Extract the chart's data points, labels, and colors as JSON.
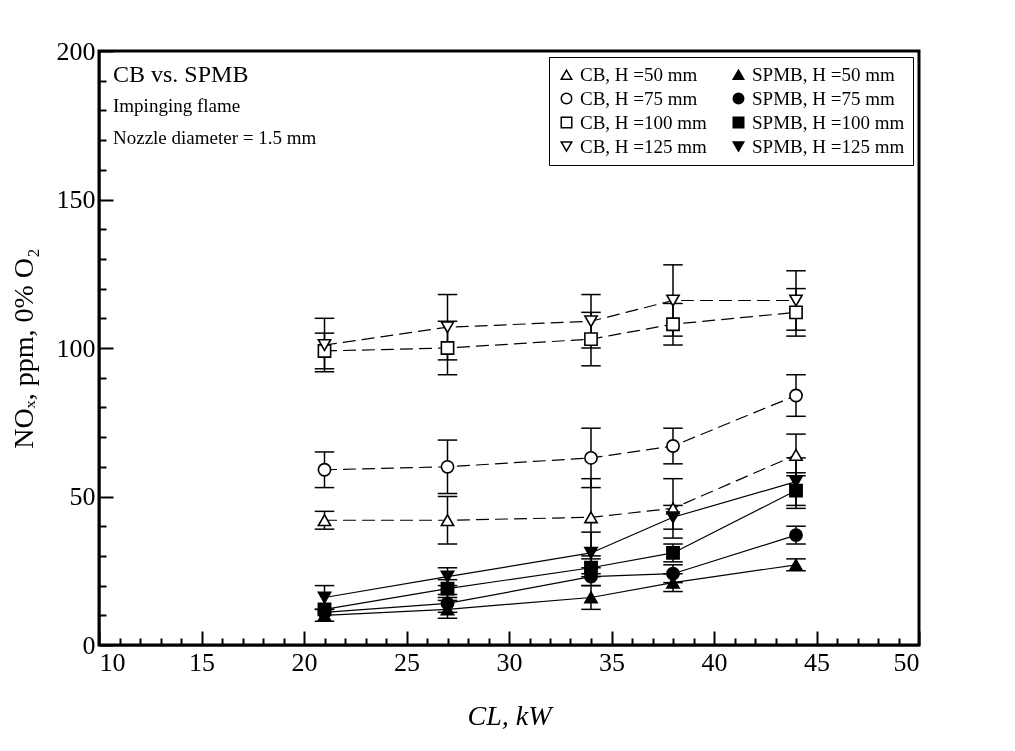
{
  "chart_data": {
    "type": "line",
    "xlabel": "CL, kW",
    "ylabel": "NOₓ, ppm, 0% O₂",
    "annotations": [
      "CB vs. SPMB",
      "Impinging flame",
      "Nozzle diameter = 1.5 mm"
    ],
    "x": [
      21,
      27,
      34,
      38,
      44
    ],
    "series": [
      {
        "name": "CB, H =50 mm",
        "color": "#000000",
        "marker": "triangle",
        "line_style": "dashed",
        "values": [
          42,
          42,
          43,
          46,
          64
        ],
        "errors": [
          3,
          8,
          13,
          10,
          7
        ]
      },
      {
        "name": "CB, H =75 mm",
        "color": "#000000",
        "marker": "circle",
        "line_style": "dashed",
        "values": [
          59,
          60,
          63,
          67,
          84
        ],
        "errors": [
          6,
          9,
          10,
          6,
          7
        ]
      },
      {
        "name": "CB, H =100 mm",
        "color": "#000000",
        "marker": "square",
        "line_style": "dashed",
        "values": [
          99,
          100,
          103,
          108,
          112
        ],
        "errors": [
          6,
          9,
          9,
          7,
          8
        ]
      },
      {
        "name": "CB, H =125 mm",
        "color": "#000000",
        "marker": "triangle-down",
        "line_style": "dashed",
        "values": [
          101,
          107,
          109,
          116,
          116
        ],
        "errors": [
          9,
          11,
          9,
          12,
          10
        ]
      },
      {
        "name": "SPMB, H =50 mm",
        "color": "#000000",
        "marker": "triangle",
        "line_style": "solid",
        "values": [
          10,
          12,
          16,
          21,
          27
        ],
        "errors": [
          2,
          3,
          4,
          3,
          2
        ]
      },
      {
        "name": "SPMB, H =75 mm",
        "color": "#000000",
        "marker": "circle",
        "line_style": "solid",
        "values": [
          11,
          14,
          23,
          24,
          37
        ],
        "errors": [
          null,
          3,
          3,
          3,
          3
        ]
      },
      {
        "name": "SPMB, H =100 mm",
        "color": "#000000",
        "marker": "square",
        "line_style": "solid",
        "values": [
          12,
          19,
          26,
          31,
          52
        ],
        "errors": [
          null,
          3,
          3,
          3,
          6
        ]
      },
      {
        "name": "SPMB, H =125 mm",
        "color": "#000000",
        "marker": "triangle-down",
        "line_style": "solid",
        "values": [
          16,
          23,
          31,
          43,
          55
        ],
        "errors": [
          4,
          3,
          7,
          4,
          8
        ]
      }
    ],
    "xlim": [
      10,
      50
    ],
    "xticks": [
      10,
      {
        "value": 11,
        "label": null
      },
      {
        "value": 12,
        "label": null
      },
      {
        "value": 13,
        "label": null
      },
      {
        "value": 14,
        "label": null
      },
      15,
      {
        "value": 16,
        "label": null
      },
      {
        "value": 17,
        "label": null
      },
      {
        "value": 18,
        "label": null
      },
      {
        "value": 19,
        "label": null
      },
      20,
      {
        "value": 21,
        "label": null
      },
      {
        "value": 22,
        "label": null
      },
      {
        "value": 23,
        "label": null
      },
      {
        "value": 24,
        "label": null
      },
      25,
      {
        "value": 26,
        "label": null
      },
      {
        "value": 27,
        "label": null
      },
      {
        "value": 28,
        "label": null
      },
      {
        "value": 29,
        "label": null
      },
      30,
      {
        "value": 31,
        "label": null
      },
      {
        "value": 32,
        "label": null
      },
      {
        "value": 33,
        "label": null
      },
      {
        "value": 34,
        "label": null
      },
      35,
      {
        "value": 36,
        "label": null
      },
      {
        "value": 37,
        "label": null
      },
      {
        "value": 38,
        "label": null
      },
      {
        "value": 39,
        "label": null
      },
      40,
      {
        "value": 41,
        "label": null
      },
      {
        "value": 42,
        "label": null
      },
      {
        "value": 43,
        "label": null
      },
      {
        "value": 44,
        "label": null
      },
      45,
      {
        "value": 46,
        "label": null
      },
      {
        "value": 47,
        "label": null
      },
      {
        "value": 48,
        "label": null
      },
      {
        "value": 49,
        "label": null
      },
      50
    ],
    "ylim": [
      0,
      200
    ],
    "yticks": [
      0,
      {
        "value": 10,
        "label": null
      },
      {
        "value": 20,
        "label": null
      },
      {
        "value": 30,
        "label": null
      },
      {
        "value": 40,
        "label": null
      },
      50,
      {
        "value": 60,
        "label": null
      },
      {
        "value": 70,
        "label": null
      },
      {
        "value": 80,
        "label": null
      },
      {
        "value": 90,
        "label": null
      },
      100,
      {
        "value": 110,
        "label": null
      },
      {
        "value": 120,
        "label": null
      },
      {
        "value": 130,
        "label": null
      },
      {
        "value": 140,
        "label": null
      },
      150,
      {
        "value": 160,
        "label": null
      },
      {
        "value": 170,
        "label": null
      },
      {
        "value": 180,
        "label": null
      },
      {
        "value": 190,
        "label": null
      },
      200
    ],
    "grid": false,
    "legend": "top right"
  }
}
